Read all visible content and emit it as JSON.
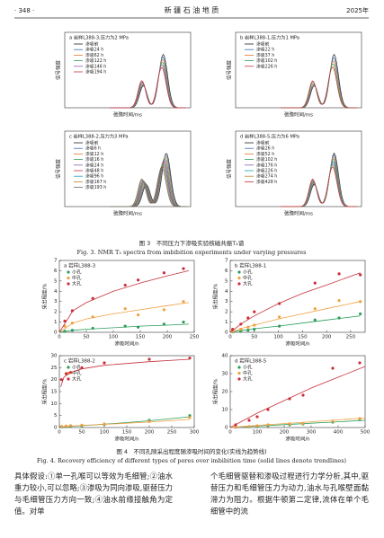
{
  "header": {
    "page": "· 348 ·",
    "journal": "新 疆 石 油 地 质",
    "year": "2025年"
  },
  "figure3": {
    "ylabel": "信号强度",
    "xlabel": "弛豫时间/ms",
    "panels": [
      {
        "title": "a 岩样L388-3,压力为2 MPa",
        "legend": [
          "渗吸前",
          "渗吸24 h",
          "渗吸62 h",
          "渗吸122 h",
          "渗吸146 h",
          "渗吸194 h"
        ],
        "colors": [
          "#222222",
          "#3b6fb6",
          "#e07b2a",
          "#2e9e5a",
          "#8e5bb5",
          "#c8303a"
        ]
      },
      {
        "title": "b 岩样L388-1,压力为1 MPa",
        "legend": [
          "渗吸前",
          "渗吸22 h",
          "渗吸37 h",
          "渗吸102 h",
          "渗吸226 h"
        ],
        "colors": [
          "#222222",
          "#3b6fb6",
          "#e07b2a",
          "#2e9e5a",
          "#c8303a"
        ]
      },
      {
        "title": "c 岩样L388-2,压力为3 MPa",
        "legend": [
          "渗吸前",
          "渗吸6 h",
          "渗吸12 h",
          "渗吸16 h",
          "渗吸24 h",
          "渗吸48 h",
          "渗吸96 h",
          "渗吸167 h",
          "渗吸193 h"
        ],
        "colors": [
          "#222222",
          "#3b6fb6",
          "#e07b2a",
          "#2e9e5a",
          "#8e5bb5",
          "#c8303a",
          "#17a2b8",
          "#b5892e",
          "#6a6a6a"
        ]
      },
      {
        "title": "d 岩样L388-5,压力为6 MPa",
        "legend": [
          "渗吸前",
          "渗吸26 h",
          "渗吸52 h",
          "渗吸102 h",
          "渗吸176 h",
          "渗吸226 h",
          "渗吸274 h",
          "渗吸428 h"
        ],
        "colors": [
          "#222222",
          "#3b6fb6",
          "#e07b2a",
          "#2e9e5a",
          "#8e5bb5",
          "#17a2b8",
          "#b5892e",
          "#c8303a"
        ]
      }
    ],
    "caption_cn": "图 3　不同压力下渗吸实验核磁共振T₂谱",
    "caption_en": "Fig. 3.  NMR T₂ spectra from imbibition experiments under varying pressures"
  },
  "chart_data": [
    {
      "type": "scatter",
      "title": "a 岩样L388-3",
      "xlabel": "渗吸时间/h",
      "ylabel": "采出程度/%",
      "xlim": [
        0,
        250
      ],
      "xticks": [
        0,
        50,
        100,
        150,
        200,
        250
      ],
      "ylim": [
        0,
        7
      ],
      "yticks": [
        0,
        1,
        2,
        3,
        4,
        5,
        6,
        7
      ],
      "x": [
        10,
        24,
        62,
        122,
        146,
        194,
        230
      ],
      "trend_x": [
        0,
        25,
        50,
        100,
        150,
        200,
        240
      ],
      "series": [
        {
          "name": "小孔",
          "color": "#2a9d5c",
          "values": [
            0.1,
            0.2,
            0.4,
            0.6,
            0.5,
            0.8,
            1.0
          ],
          "trend": [
            0,
            0.2,
            0.3,
            0.45,
            0.6,
            0.7,
            0.8
          ]
        },
        {
          "name": "中孔",
          "color": "#f0a040",
          "values": [
            0.6,
            0.9,
            1.5,
            2.3,
            1.7,
            2.2,
            3.0
          ],
          "trend": [
            0,
            0.9,
            1.3,
            1.8,
            2.2,
            2.6,
            2.9
          ]
        },
        {
          "name": "大孔",
          "color": "#c8303a",
          "values": [
            1.1,
            2.1,
            3.3,
            4.6,
            5.1,
            5.8,
            6.2
          ],
          "trend": [
            0,
            2.1,
            2.9,
            4.0,
            4.8,
            5.5,
            6.0
          ]
        }
      ]
    },
    {
      "type": "scatter",
      "title": "b 岩样L388-1",
      "xlabel": "渗吸时间/h",
      "ylabel": "采出程度/%",
      "xlim": [
        0,
        280
      ],
      "xticks": [
        0,
        50,
        100,
        150,
        200,
        250
      ],
      "ylim": [
        0,
        7
      ],
      "yticks": [
        0,
        1,
        2,
        3,
        4,
        5,
        6,
        7
      ],
      "x": [
        5,
        22,
        37,
        50,
        102,
        176,
        226,
        270
      ],
      "trend_x": [
        0,
        25,
        50,
        100,
        150,
        200,
        270
      ],
      "series": [
        {
          "name": "小孔",
          "color": "#2a9d5c",
          "values": [
            0.05,
            0.1,
            0.2,
            0.3,
            0.6,
            1.2,
            1.4,
            1.8
          ],
          "trend": [
            0,
            0.2,
            0.35,
            0.6,
            0.9,
            1.2,
            1.6
          ]
        },
        {
          "name": "中孔",
          "color": "#f0a040",
          "values": [
            0.1,
            0.3,
            0.5,
            0.7,
            1.5,
            2.3,
            3.1,
            3.0
          ],
          "trend": [
            0,
            0.4,
            0.7,
            1.3,
            1.8,
            2.3,
            3.0
          ]
        },
        {
          "name": "大孔",
          "color": "#c8303a",
          "values": [
            0.3,
            0.8,
            1.4,
            2.0,
            2.8,
            4.8,
            5.7,
            5.6
          ],
          "trend": [
            0,
            0.9,
            1.6,
            2.8,
            3.8,
            4.6,
            5.8
          ]
        }
      ]
    },
    {
      "type": "scatter",
      "title": "c 岩样L388-2",
      "xlabel": "渗吸时间/h",
      "ylabel": "采出程度/%",
      "xlim": [
        0,
        300
      ],
      "xticks": [
        0,
        50,
        100,
        150,
        200,
        250,
        300
      ],
      "ylim": [
        0,
        30
      ],
      "yticks": [
        0,
        5,
        10,
        15,
        20,
        25,
        30
      ],
      "x": [
        5,
        15,
        25,
        50,
        100,
        200,
        290
      ],
      "trend_x": [
        3,
        10,
        25,
        50,
        100,
        200,
        290
      ],
      "series": [
        {
          "name": "小孔",
          "color": "#2a9d5c",
          "values": [
            0.3,
            0.4,
            0.5,
            0.7,
            1.3,
            3.0,
            5.0
          ],
          "trend": [
            0.1,
            0.3,
            0.5,
            0.8,
            1.4,
            2.8,
            4.5
          ]
        },
        {
          "name": "中孔",
          "color": "#f0a040",
          "values": [
            0.5,
            0.6,
            0.8,
            1.0,
            1.5,
            2.5,
            4.2
          ],
          "trend": [
            0.1,
            0.4,
            0.6,
            0.9,
            1.3,
            2.3,
            3.4
          ]
        },
        {
          "name": "大孔",
          "color": "#c8303a",
          "values": [
            20,
            22.5,
            23,
            25,
            27,
            28.5,
            29
          ],
          "trend": [
            17,
            21,
            23,
            24.5,
            26,
            27.5,
            28.5
          ]
        }
      ]
    },
    {
      "type": "scatter",
      "title": "d 岩样L388-5",
      "xlabel": "渗吸时间/h",
      "ylabel": "采出程度/%",
      "xlim": [
        0,
        500
      ],
      "xticks": [
        0,
        100,
        200,
        300,
        400,
        500
      ],
      "ylim": [
        0,
        40
      ],
      "yticks": [
        0,
        10,
        20,
        30,
        40
      ],
      "x": [
        20,
        70,
        100,
        140,
        220,
        270,
        380,
        480
      ],
      "trend_x": [
        0,
        50,
        100,
        200,
        300,
        400,
        500
      ],
      "series": [
        {
          "name": "小孔",
          "color": "#2a9d5c",
          "values": [
            0.2,
            0.4,
            0.6,
            1.0,
            1.5,
            2.0,
            3.0,
            4.5
          ],
          "trend": [
            0,
            0.4,
            0.8,
            1.6,
            2.4,
            3.2,
            4.0
          ]
        },
        {
          "name": "中孔",
          "color": "#f0a040",
          "values": [
            0.3,
            0.6,
            1.0,
            1.5,
            2.0,
            2.3,
            3.5,
            5.0
          ],
          "trend": [
            0,
            0.6,
            1.2,
            2.2,
            3.2,
            4.3,
            5.3
          ]
        },
        {
          "name": "大孔",
          "color": "#c8303a",
          "values": [
            1.5,
            4,
            6,
            10,
            16,
            18,
            33,
            36
          ],
          "trend": [
            0,
            4,
            8,
            15,
            22,
            28,
            34
          ]
        }
      ]
    }
  ],
  "figure4": {
    "caption_cn": "图 4　不同孔隙采出程度随渗吸时间的变化(实线为趋势线)",
    "caption_en": "Fig. 4.  Recovery efficiency of different types of pores over imbibition time (solid lines denote trendlines)"
  },
  "body": {
    "left": "具体假设:①单一孔喉可以等效为毛细管;②油水重力较小,可以忽略;③渗吸为同向渗吸,驱替压力与毛细管压力方向一致;④油水前缘接触角为定值。对单",
    "right": "个毛细管驱替和渗吸过程进行力学分析,其中,驱替压力和毛细管压力为动力,油水与孔喉壁面黏滞力为阻力。根据牛顿第二定律,流体在单个毛细管中的流"
  }
}
